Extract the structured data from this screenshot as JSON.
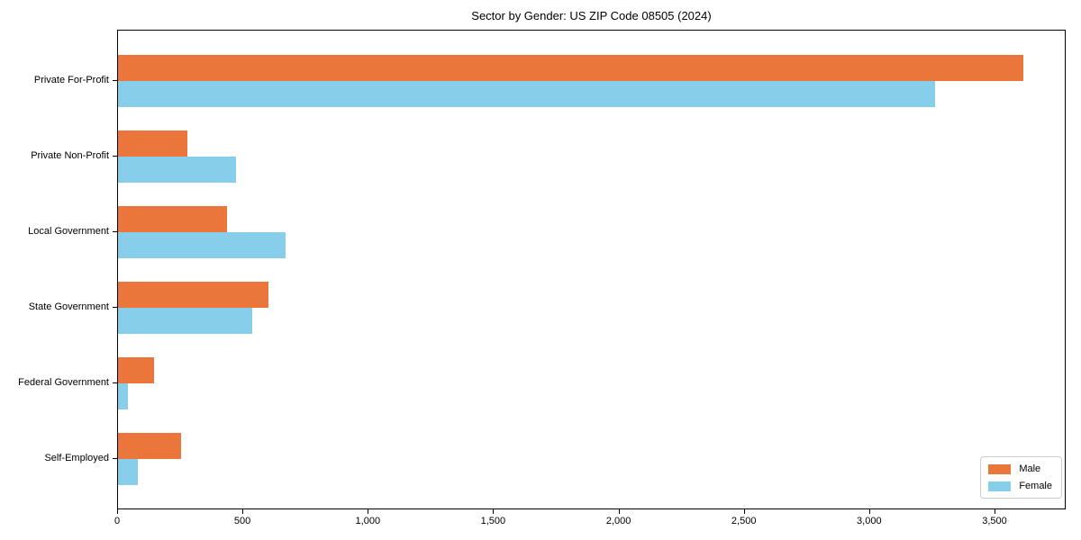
{
  "title": "Sector by Gender: US ZIP Code 08505 (2024)",
  "chart_data": {
    "type": "bar",
    "orientation": "horizontal",
    "title": "Sector by Gender: US ZIP Code 08505 (2024)",
    "xlabel": "",
    "ylabel": "",
    "categories": [
      "Private For-Profit",
      "Private Non-Profit",
      "Local Government",
      "State Government",
      "Federal Government",
      "Self-Employed"
    ],
    "series": [
      {
        "name": "Male",
        "color": "#EB763B",
        "values": [
          3610,
          275,
          435,
          600,
          145,
          250
        ]
      },
      {
        "name": "Female",
        "color": "#87CEEB",
        "values": [
          3260,
          470,
          670,
          535,
          40,
          80
        ]
      }
    ],
    "xlim": [
      0,
      3784
    ],
    "xticks": [
      0,
      500,
      1000,
      1500,
      2000,
      2500,
      3000,
      3500
    ],
    "xtick_labels": [
      "0",
      "500",
      "1,000",
      "1,500",
      "2,000",
      "2,500",
      "3,000",
      "3,500"
    ],
    "grid": false,
    "legend_position": "lower right",
    "background_color": "#ffffff",
    "axis_color": "#000000"
  },
  "legend": {
    "items": [
      {
        "label": "Male",
        "color": "#EB763B"
      },
      {
        "label": "Female",
        "color": "#87CEEB"
      }
    ]
  }
}
